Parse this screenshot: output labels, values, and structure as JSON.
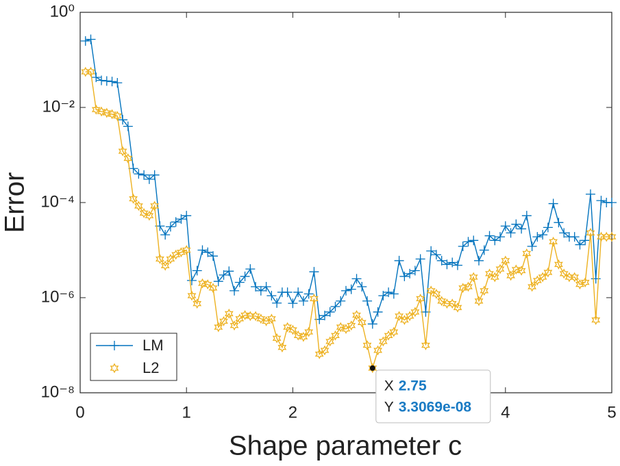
{
  "chart_data": {
    "type": "line",
    "xlabel": "Shape parameter c",
    "ylabel": "Error",
    "log_y": true,
    "legend": "lower left",
    "x": [
      0.05,
      0.1,
      0.15,
      0.2,
      0.25,
      0.3,
      0.35,
      0.4,
      0.45,
      0.5,
      0.55,
      0.6,
      0.65,
      0.7,
      0.75,
      0.8,
      0.85,
      0.9,
      0.95,
      1.0,
      1.05,
      1.1,
      1.15,
      1.2,
      1.25,
      1.3,
      1.35,
      1.4,
      1.45,
      1.5,
      1.55,
      1.6,
      1.65,
      1.7,
      1.75,
      1.8,
      1.85,
      1.9,
      1.95,
      2.0,
      2.05,
      2.1,
      2.15,
      2.2,
      2.25,
      2.3,
      2.35,
      2.4,
      2.45,
      2.5,
      2.55,
      2.6,
      2.65,
      2.7,
      2.75,
      2.8,
      2.85,
      2.9,
      2.95,
      3.0,
      3.05,
      3.1,
      3.15,
      3.2,
      3.25,
      3.3,
      3.35,
      3.4,
      3.45,
      3.5,
      3.55,
      3.6,
      3.65,
      3.7,
      3.75,
      3.8,
      3.85,
      3.9,
      3.95,
      4.0,
      4.05,
      4.1,
      4.15,
      4.2,
      4.25,
      4.3,
      4.35,
      4.4,
      4.45,
      4.5,
      4.55,
      4.6,
      4.65,
      4.7,
      4.75,
      4.8,
      4.85,
      4.9,
      4.95,
      5.0
    ],
    "series": [
      {
        "name": "LM",
        "color": "#0072bd",
        "marker": "plus",
        "values": [
          0.25,
          0.27,
          0.043,
          0.037,
          0.036,
          0.035,
          0.033,
          0.0055,
          0.004,
          0.00052,
          0.0004,
          0.00038,
          0.00031,
          0.00038,
          3.2e-05,
          2.1e-05,
          3.1e-05,
          3.9e-05,
          4.5e-05,
          5.3e-05,
          2.3e-06,
          3.7e-06,
          1e-05,
          9e-06,
          7.5e-06,
          2.2e-06,
          3e-06,
          3.6e-06,
          1.4e-06,
          2.1e-06,
          2.8e-06,
          4e-06,
          1.7e-06,
          1.4e-06,
          1.7e-06,
          1.1e-06,
          7.7e-07,
          1.3e-06,
          1.3e-06,
          7.6e-07,
          1.3e-06,
          8.5e-07,
          1.2e-06,
          3.5e-06,
          3.5e-07,
          4.2e-07,
          5e-07,
          6.5e-07,
          8.5e-07,
          1.4e-06,
          1.5e-06,
          2.5e-06,
          1.7e-06,
          8.5e-07,
          2.8e-07,
          5e-07,
          1.1e-06,
          1.3e-06,
          1.2e-06,
          6e-06,
          2.8e-06,
          3.2e-06,
          3.7e-06,
          6.5e-06,
          5e-07,
          9.6e-06,
          8e-06,
          6e-06,
          5e-06,
          5.5e-06,
          4.8e-06,
          1.2e-05,
          1.5e-05,
          1.6e-05,
          6e-06,
          1e-05,
          2e-05,
          1.6e-05,
          1.9e-05,
          3.2e-05,
          2.3e-05,
          3.5e-05,
          2.8e-05,
          5.3e-05,
          1.2e-05,
          1.9e-05,
          2.1e-05,
          3e-05,
          9.5e-05,
          3.8e-05,
          2.3e-05,
          1.9e-05,
          1.9e-05,
          1.3e-05,
          1.6e-05,
          0.00015,
          2.5e-06,
          0.00011,
          0.0001,
          0.0001
        ]
      },
      {
        "name": "L2",
        "color": "#edb120",
        "marker": "hexagram",
        "values": [
          0.056,
          0.056,
          0.009,
          0.0082,
          0.0077,
          0.0072,
          0.0066,
          0.0012,
          0.00085,
          0.00012,
          8.5e-05,
          6e-05,
          5.3e-05,
          8.5e-05,
          6.5e-06,
          4.7e-06,
          6.5e-06,
          8e-06,
          9e-06,
          1e-05,
          1.1e-06,
          7.5e-07,
          2e-06,
          1.9e-06,
          1.6e-06,
          2.4e-07,
          3.2e-07,
          4.6e-07,
          2.6e-07,
          3.6e-07,
          4.3e-07,
          4.1e-07,
          4.1e-07,
          3.6e-07,
          3.2e-07,
          3.6e-07,
          1.4e-07,
          9e-08,
          2.4e-07,
          2.1e-07,
          1.6e-07,
          1.5e-07,
          1.9e-07,
          9.5e-07,
          6.5e-08,
          7.8e-08,
          1.2e-07,
          1.6e-07,
          2.4e-07,
          2.2e-07,
          2.6e-07,
          4.3e-07,
          3e-07,
          1e-07,
          3.3069e-08,
          7.8e-08,
          1.2e-07,
          1.6e-07,
          1.9e-07,
          4.1e-07,
          3.4e-07,
          4.1e-07,
          5e-07,
          9.5e-07,
          1e-07,
          1.4e-06,
          1.2e-06,
          8.5e-07,
          7.5e-07,
          7.5e-07,
          6.2e-07,
          1.6e-06,
          1.7e-06,
          2.7e-06,
          8.5e-07,
          1.4e-06,
          3.2e-06,
          2.7e-06,
          4e-06,
          6e-06,
          2.9e-06,
          3.9e-06,
          3.7e-06,
          8.5e-06,
          1.7e-06,
          2.3e-06,
          2.7e-06,
          3.4e-06,
          1.5e-05,
          5e-06,
          3.2e-06,
          2.7e-06,
          2.7e-06,
          1.9e-06,
          2.1e-06,
          2.3e-05,
          3.4e-07,
          1.9e-05,
          1.9e-05,
          1.9e-05
        ]
      }
    ],
    "xlim": [
      0,
      5
    ],
    "xticks": [
      0,
      1,
      2,
      3,
      4,
      5
    ],
    "ylim": [
      1e-08,
      1
    ],
    "yticks": [
      {
        "value": 1,
        "label": "10⁰"
      },
      {
        "value": 0.01,
        "label": "10⁻²"
      },
      {
        "value": 0.0001,
        "label": "10⁻⁴"
      },
      {
        "value": 1e-06,
        "label": "10⁻⁶"
      },
      {
        "value": 1e-08,
        "label": "10⁻⁸"
      }
    ],
    "datatip": {
      "x": 2.75,
      "y": 3.3069e-08,
      "x_name": "X",
      "x_text": "2.75",
      "y_name": "Y",
      "y_text": "3.3069e-08"
    }
  }
}
